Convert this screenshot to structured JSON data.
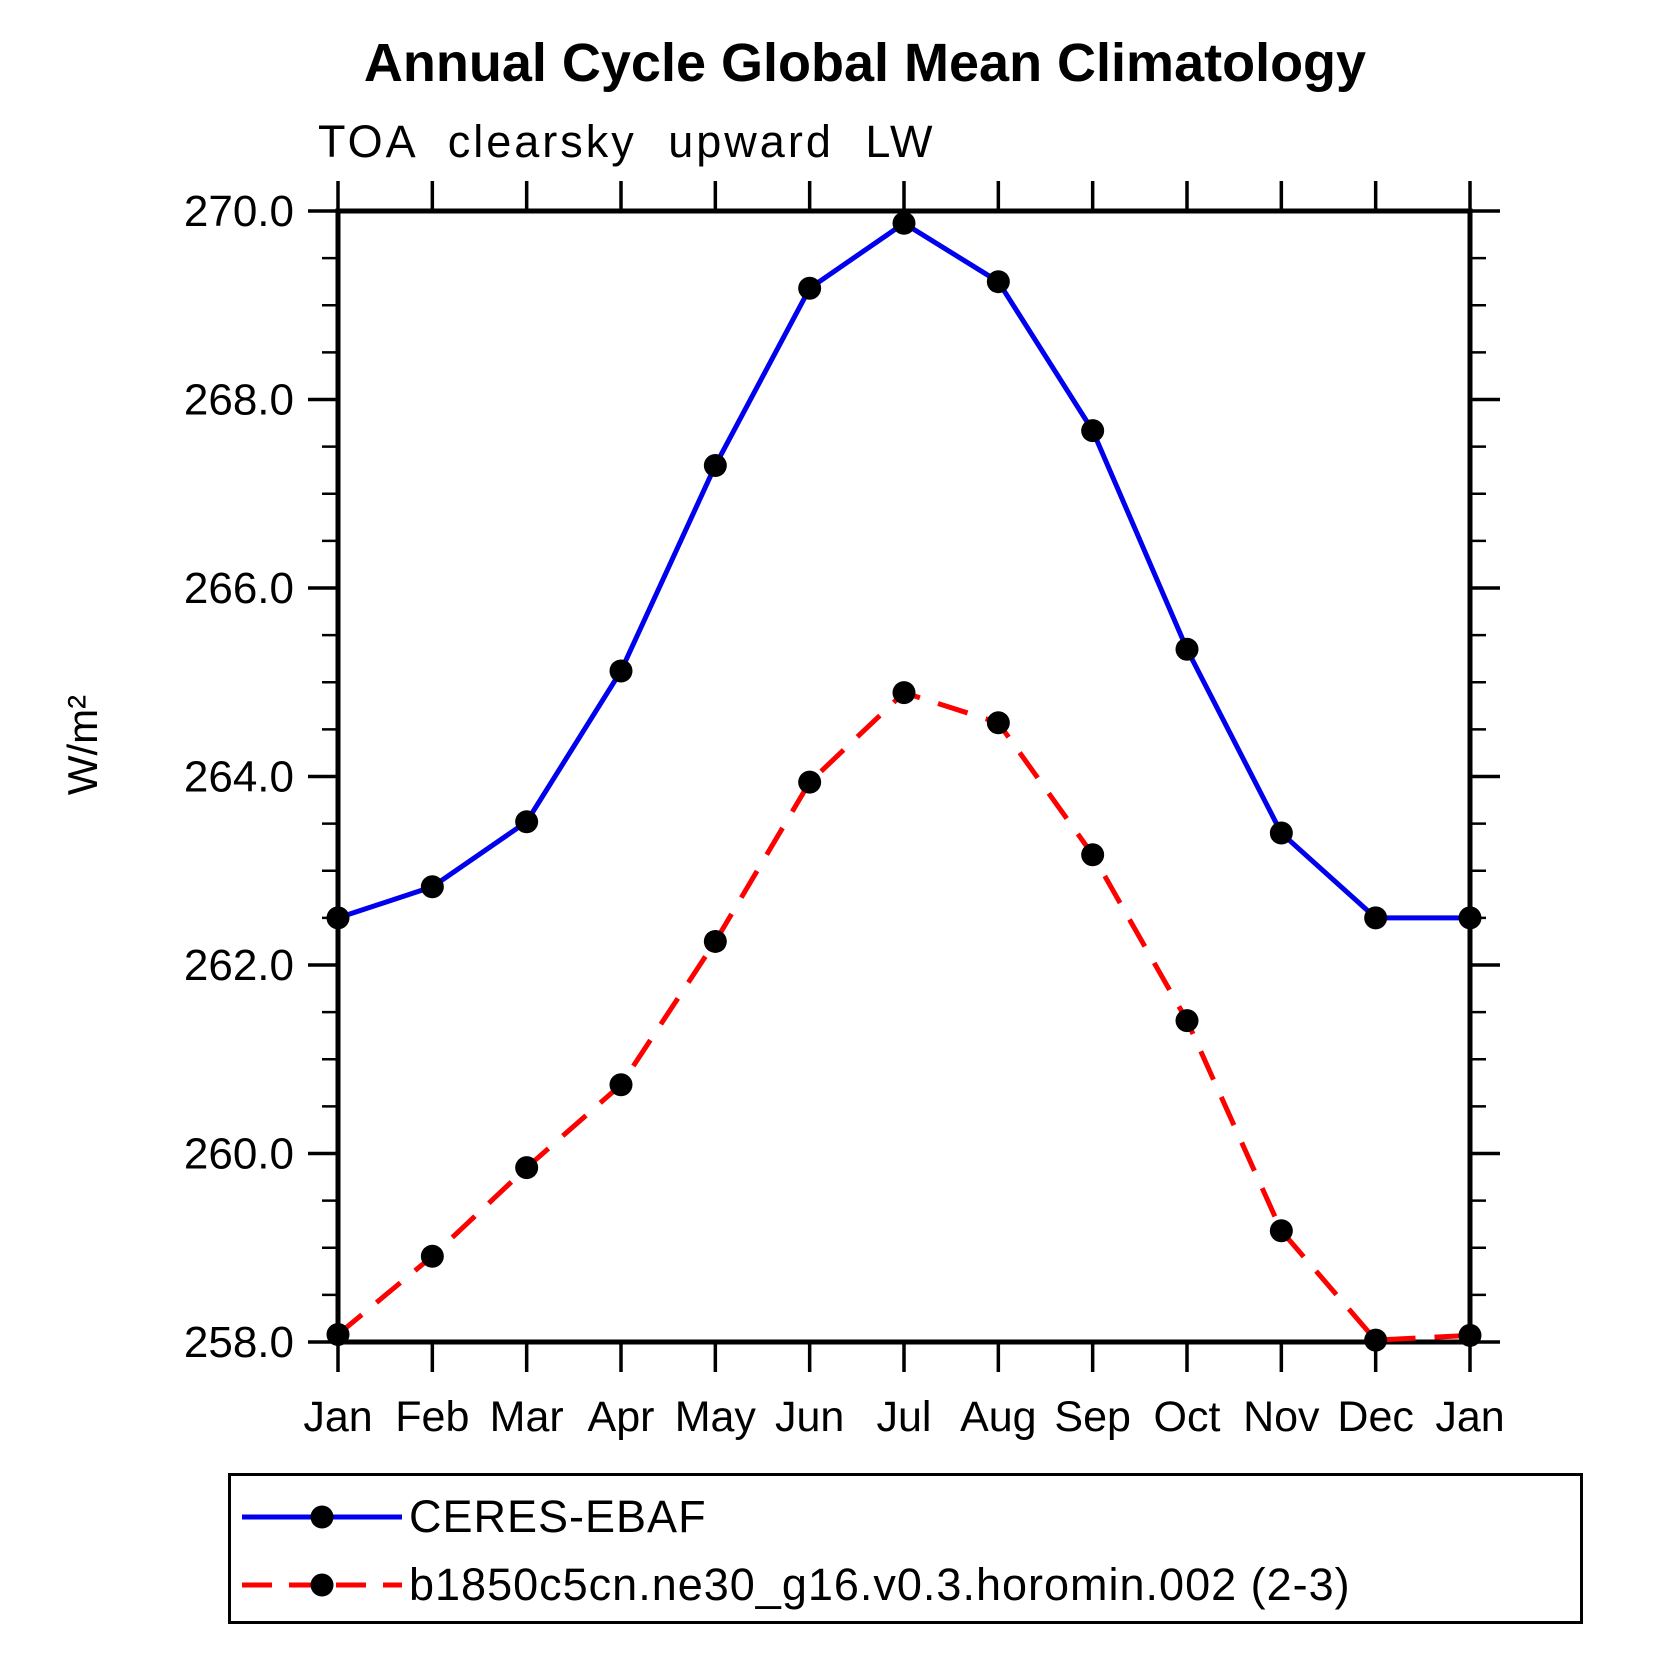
{
  "chart_data": {
    "type": "line",
    "title": "Annual Cycle Global Mean Climatology",
    "subtitle": "TOA clearsky upward LW",
    "ylabel": "W/m²",
    "ylim": [
      258.0,
      270.0
    ],
    "ytick_labels": [
      "258.0",
      "260.0",
      "262.0",
      "264.0",
      "266.0",
      "268.0",
      "270.0"
    ],
    "ytick_major_step": 2.0,
    "ytick_minor_step": 0.5,
    "x_categories": [
      "Jan",
      "Feb",
      "Mar",
      "Apr",
      "May",
      "Jun",
      "Jul",
      "Aug",
      "Sep",
      "Oct",
      "Nov",
      "Dec",
      "Jan"
    ],
    "grid": false,
    "legend_position": "bottom-box",
    "axis_color": "#000000",
    "marker_shape": "filled-circle",
    "series": [
      {
        "name": "CERES-EBAF",
        "color": "#0000ee",
        "line_style": "solid",
        "marker_color": "#000000",
        "values": [
          262.5,
          262.83,
          263.52,
          265.12,
          267.3,
          269.18,
          269.87,
          269.25,
          267.67,
          265.35,
          263.4,
          262.5,
          262.5
        ]
      },
      {
        "name": "b1850c5cn.ne30_g16.v0.3.horomin.002 (2-3)",
        "color": "#ff0000",
        "line_style": "dashed",
        "marker_color": "#000000",
        "values": [
          258.08,
          258.91,
          259.85,
          260.73,
          262.25,
          263.94,
          264.89,
          264.57,
          263.17,
          261.41,
          259.18,
          258.02,
          258.07
        ]
      }
    ]
  }
}
